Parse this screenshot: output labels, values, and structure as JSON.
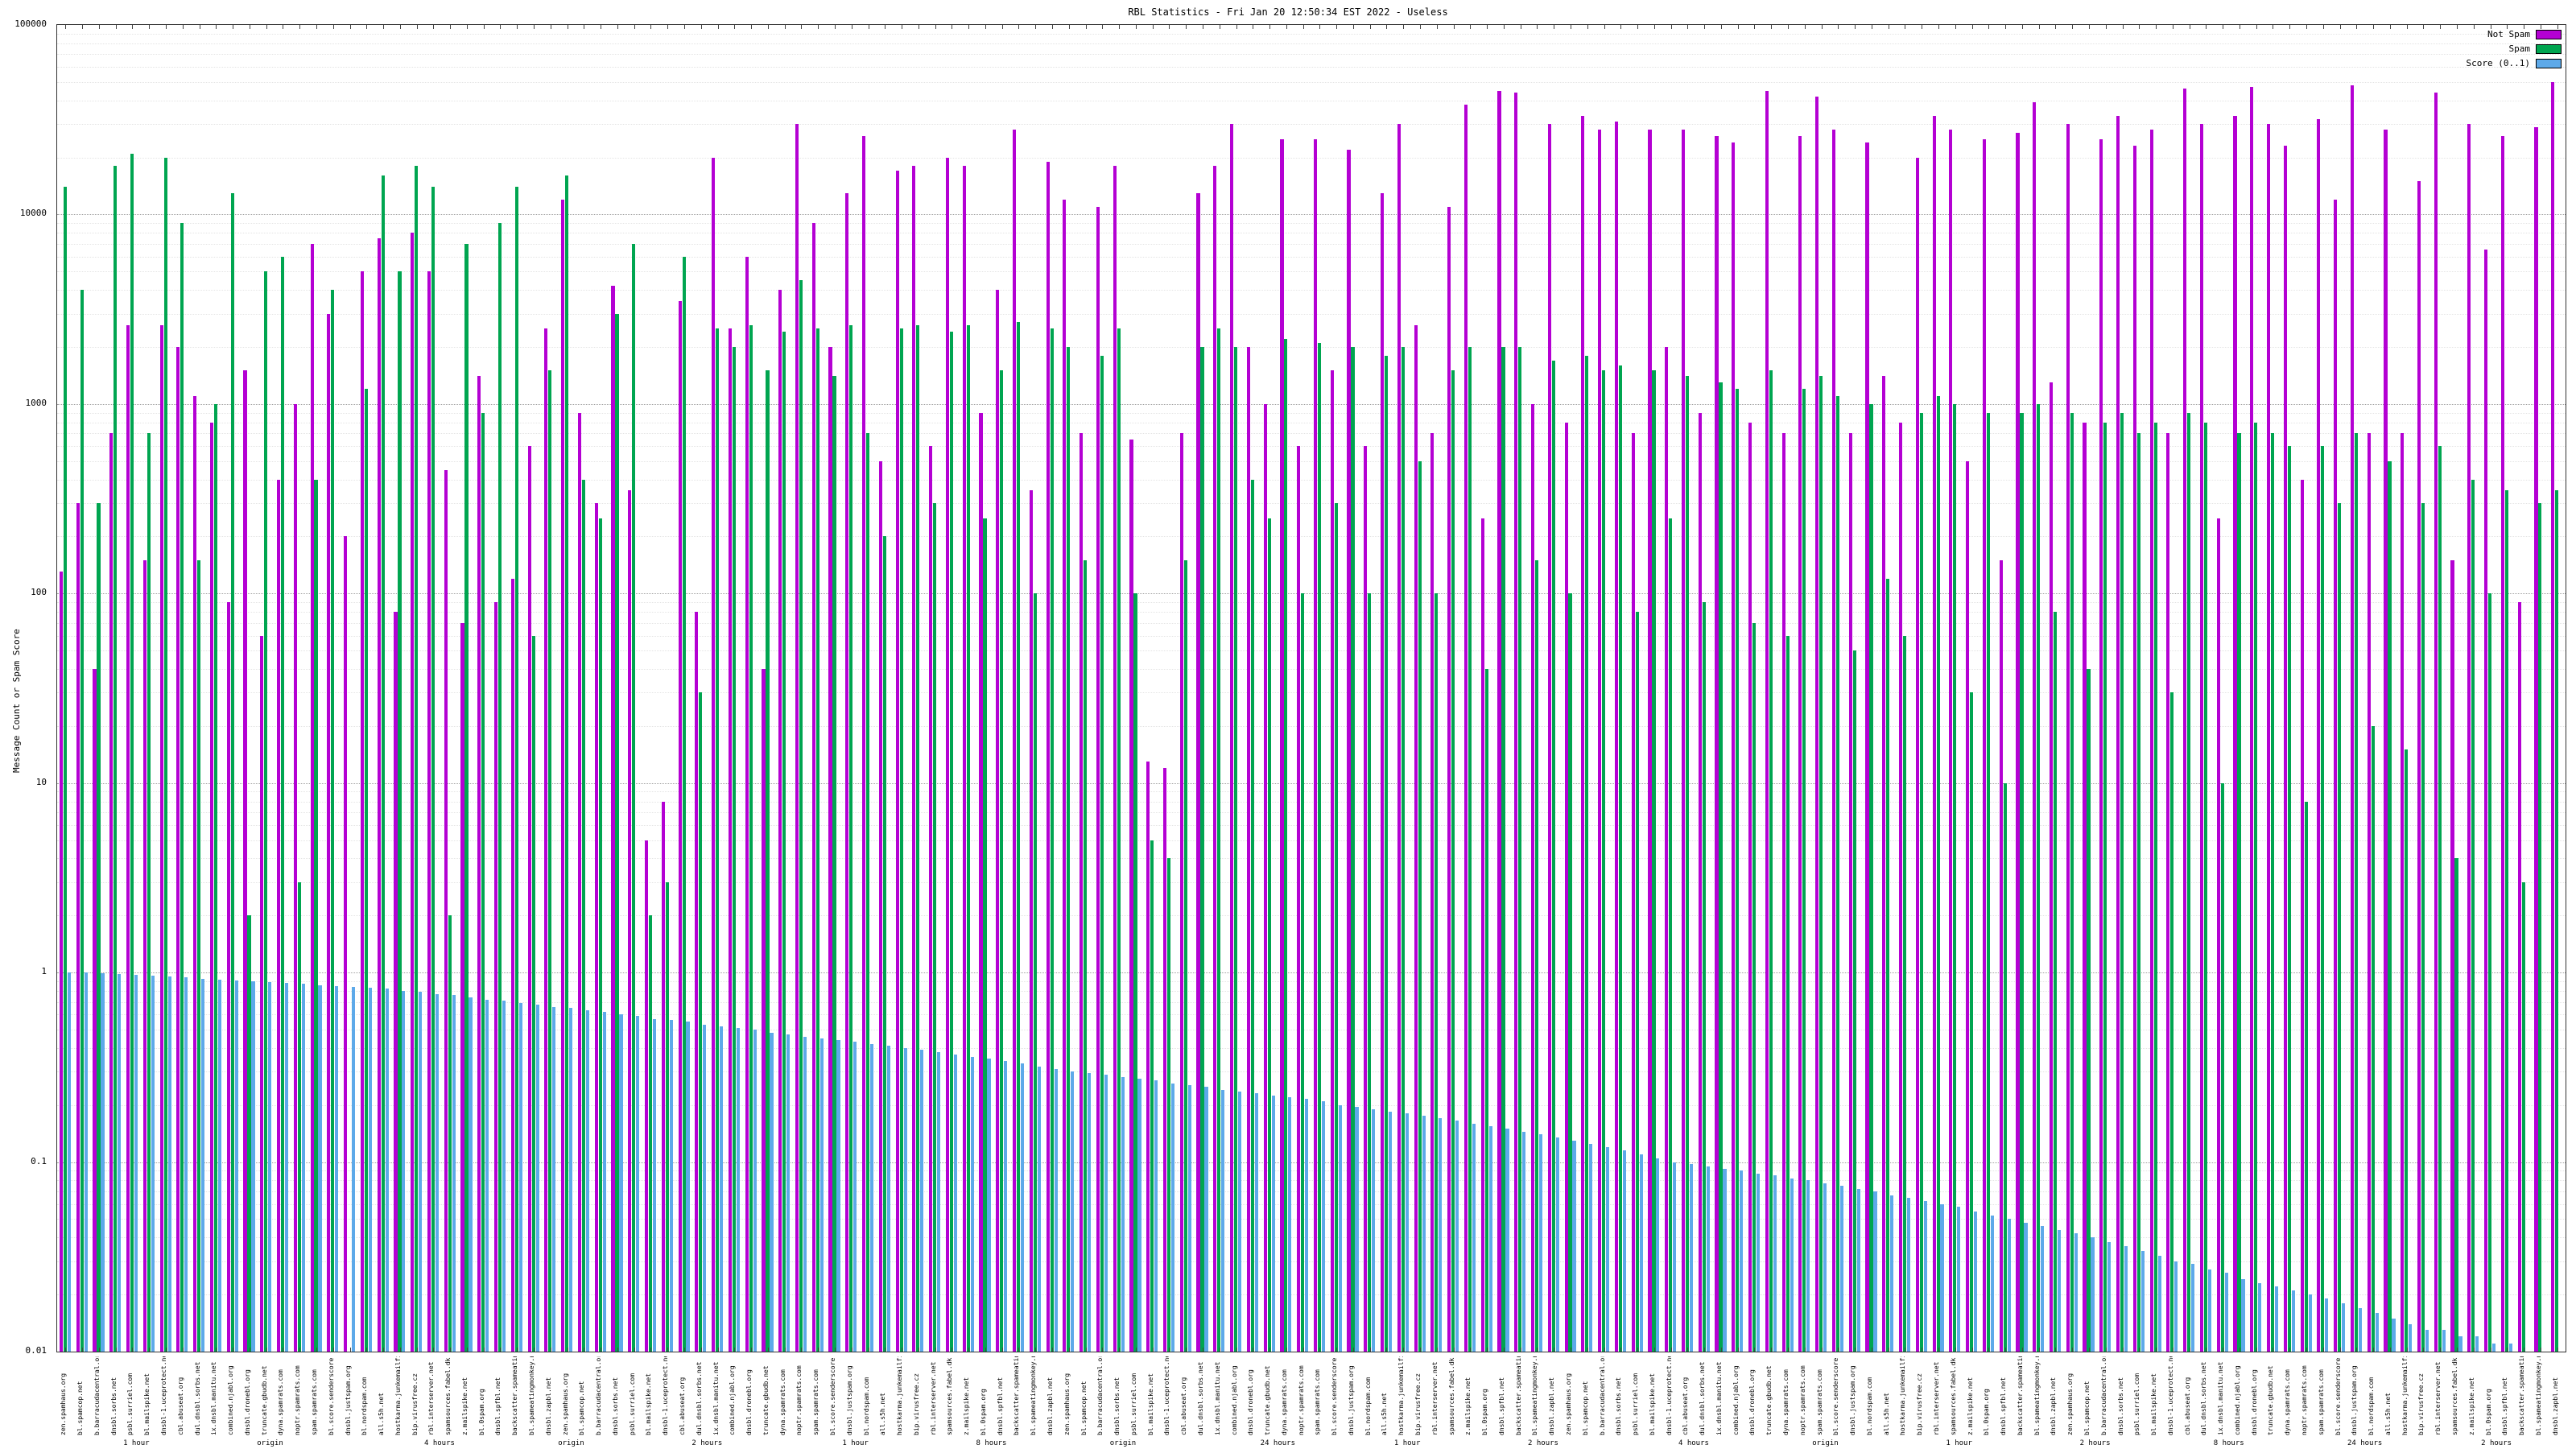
{
  "chart_data": {
    "type": "bar",
    "title": "RBL Statistics - Fri Jan 20 12:50:34 EST 2022 - Useless",
    "ylabel": "Message Count or Spam Score",
    "xlabel": "",
    "scale": "log",
    "ylim": [
      0.01,
      100000
    ],
    "yticks": [
      "100000",
      "10000",
      "1000",
      "100",
      "10",
      "1",
      "0.1",
      "0.01"
    ],
    "grid": true,
    "legend_position": "top-right",
    "background": "#ffffff",
    "categories": [
      "zen.spamhaus.org",
      "bl.spamcop.net",
      "b.barracudacentral.org",
      "dnsbl.sorbs.net",
      "psbl.surriel.com",
      "bl.mailspike.net",
      "dnsbl-1.uceprotect.net",
      "cbl.abuseat.org",
      "dul.dnsbl.sorbs.net",
      "ix.dnsbl.manitu.net",
      "combined.njabl.org",
      "dnsbl.dronebl.org",
      "truncate.gbudb.net",
      "dyna.spamrats.com",
      "noptr.spamrats.com",
      "spam.spamrats.com",
      "bl.score.senderscore.com",
      "dnsbl.justspam.org",
      "bl.nordspam.com",
      "all.s5h.net",
      "hostkarma.junkemailfilter.com",
      "bip.virusfree.cz",
      "rbl.interserver.net",
      "spamsources.fabel.dk",
      "z.mailspike.net",
      "bl.0spam.org",
      "dnsbl.spfbl.net",
      "backscatter.spameatingmonkey.net",
      "bl.spameatingmonkey.net",
      "dnsbl.zapbl.net",
      "zen.spamhaus.org",
      "bl.spamcop.net",
      "b.barracudacentral.org",
      "dnsbl.sorbs.net",
      "psbl.surriel.com",
      "bl.mailspike.net",
      "dnsbl-1.uceprotect.net",
      "cbl.abuseat.org",
      "dul.dnsbl.sorbs.net",
      "ix.dnsbl.manitu.net",
      "combined.njabl.org",
      "dnsbl.dronebl.org",
      "truncate.gbudb.net",
      "dyna.spamrats.com",
      "noptr.spamrats.com",
      "spam.spamrats.com",
      "bl.score.senderscore.com",
      "dnsbl.justspam.org",
      "bl.nordspam.com",
      "all.s5h.net",
      "hostkarma.junkemailfilter.com",
      "bip.virusfree.cz",
      "rbl.interserver.net",
      "spamsources.fabel.dk",
      "z.mailspike.net",
      "bl.0spam.org",
      "dnsbl.spfbl.net",
      "backscatter.spameatingmonkey.net",
      "bl.spameatingmonkey.net",
      "dnsbl.zapbl.net",
      "zen.spamhaus.org",
      "bl.spamcop.net",
      "b.barracudacentral.org",
      "dnsbl.sorbs.net",
      "psbl.surriel.com",
      "bl.mailspike.net",
      "dnsbl-1.uceprotect.net",
      "cbl.abuseat.org",
      "dul.dnsbl.sorbs.net",
      "ix.dnsbl.manitu.net",
      "combined.njabl.org",
      "dnsbl.dronebl.org",
      "truncate.gbudb.net",
      "dyna.spamrats.com",
      "noptr.spamrats.com",
      "spam.spamrats.com",
      "bl.score.senderscore.com",
      "dnsbl.justspam.org",
      "bl.nordspam.com",
      "all.s5h.net",
      "hostkarma.junkemailfilter.com",
      "bip.virusfree.cz",
      "rbl.interserver.net",
      "spamsources.fabel.dk",
      "z.mailspike.net",
      "bl.0spam.org",
      "dnsbl.spfbl.net",
      "backscatter.spameatingmonkey.net",
      "bl.spameatingmonkey.net",
      "dnsbl.zapbl.net",
      "zen.spamhaus.org",
      "bl.spamcop.net",
      "b.barracudacentral.org",
      "dnsbl.sorbs.net",
      "psbl.surriel.com",
      "bl.mailspike.net",
      "dnsbl-1.uceprotect.net",
      "cbl.abuseat.org",
      "dul.dnsbl.sorbs.net",
      "ix.dnsbl.manitu.net",
      "combined.njabl.org",
      "dnsbl.dronebl.org",
      "truncate.gbudb.net",
      "dyna.spamrats.com",
      "noptr.spamrats.com",
      "spam.spamrats.com",
      "bl.score.senderscore.com",
      "dnsbl.justspam.org",
      "bl.nordspam.com",
      "all.s5h.net",
      "hostkarma.junkemailfilter.com",
      "bip.virusfree.cz",
      "rbl.interserver.net",
      "spamsources.fabel.dk",
      "z.mailspike.net",
      "bl.0spam.org",
      "dnsbl.spfbl.net",
      "backscatter.spameatingmonkey.net",
      "bl.spameatingmonkey.net",
      "dnsbl.zapbl.net",
      "zen.spamhaus.org",
      "bl.spamcop.net",
      "b.barracudacentral.org",
      "dnsbl.sorbs.net",
      "psbl.surriel.com",
      "bl.mailspike.net",
      "dnsbl-1.uceprotect.net",
      "cbl.abuseat.org",
      "dul.dnsbl.sorbs.net",
      "ix.dnsbl.manitu.net",
      "combined.njabl.org",
      "dnsbl.dronebl.org",
      "truncate.gbudb.net",
      "dyna.spamrats.com",
      "noptr.spamrats.com",
      "spam.spamrats.com",
      "bl.score.senderscore.com",
      "dnsbl.justspam.org",
      "bl.nordspam.com",
      "all.s5h.net",
      "hostkarma.junkemailfilter.com",
      "bip.virusfree.cz",
      "rbl.interserver.net",
      "spamsources.fabel.dk",
      "z.mailspike.net",
      "bl.0spam.org",
      "dnsbl.spfbl.net",
      "backscatter.spameatingmonkey.net",
      "bl.spameatingmonkey.net",
      "dnsbl.zapbl.net"
    ],
    "series": [
      {
        "name": "Not Spam",
        "color": "#b400d3",
        "values": [
          130,
          300,
          40,
          700,
          2600,
          150,
          2600,
          2000,
          1100,
          800,
          90,
          1500,
          60,
          400,
          1000,
          7000,
          3000,
          200,
          5000,
          7500,
          80,
          8000,
          5000,
          450,
          70,
          1400,
          90,
          120,
          600,
          2500,
          12000,
          900,
          300,
          4200,
          350,
          5,
          8,
          3500,
          80,
          20000,
          2500,
          6000,
          40,
          4000,
          30000,
          9000,
          2000,
          13000,
          26000,
          500,
          17000,
          18000,
          600,
          20000,
          18000,
          900,
          4000,
          28000,
          350,
          19000,
          12000,
          700,
          11000,
          18000,
          650,
          13,
          12,
          700,
          13000,
          18000,
          30000,
          2000,
          1000,
          25000,
          600,
          25000,
          1500,
          22000,
          600,
          13000,
          30000,
          2600,
          700,
          11000,
          38000,
          250,
          45000,
          44000,
          1000,
          30000,
          800,
          33000,
          28000,
          31000,
          700,
          28000,
          2000,
          28000,
          900,
          26000,
          24000,
          800,
          45000,
          700,
          26000,
          42000,
          28000,
          700,
          24000,
          1400,
          800,
          20000,
          33000,
          28000,
          500,
          25000,
          150,
          27000,
          39000,
          1300,
          30000,
          800,
          25000,
          33000,
          23000,
          28000,
          700,
          46000,
          30000,
          250,
          33000,
          47000,
          30000,
          23000,
          400,
          32000,
          12000,
          48000,
          700,
          28000,
          700,
          15000,
          44000,
          150,
          30000,
          6500,
          26000,
          90,
          29000,
          50000
        ]
      },
      {
        "name": "Spam",
        "color": "#00a550",
        "values": [
          14000,
          4000,
          300,
          18000,
          21000,
          700,
          20000,
          9000,
          150,
          1000,
          13000,
          2,
          5000,
          6000,
          3,
          400,
          4000,
          0,
          1200,
          16000,
          5000,
          18000,
          14000,
          2,
          7000,
          900,
          9000,
          14000,
          60,
          1500,
          16000,
          400,
          250,
          3000,
          7000,
          2,
          3,
          6000,
          30,
          2500,
          2000,
          2600,
          1500,
          2400,
          4500,
          2500,
          1400,
          2600,
          700,
          200,
          2500,
          2600,
          300,
          2400,
          2600,
          250,
          1500,
          2700,
          100,
          2500,
          2000,
          150,
          1800,
          2500,
          100,
          5,
          4,
          150,
          2000,
          2500,
          2000,
          400,
          250,
          2200,
          100,
          2100,
          300,
          2000,
          100,
          1800,
          2000,
          500,
          100,
          1500,
          2000,
          40,
          2000,
          2000,
          150,
          1700,
          100,
          1800,
          1500,
          1600,
          80,
          1500,
          250,
          1400,
          90,
          1300,
          1200,
          70,
          1500,
          60,
          1200,
          1400,
          1100,
          50,
          1000,
          120,
          60,
          900,
          1100,
          1000,
          30,
          900,
          10,
          900,
          1000,
          80,
          900,
          40,
          800,
          900,
          700,
          800,
          30,
          900,
          800,
          10,
          700,
          800,
          700,
          600,
          8,
          600,
          300,
          700,
          20,
          500,
          15,
          300,
          600,
          4,
          400,
          100,
          350,
          3,
          300,
          350
        ]
      },
      {
        "name": "Score (0..1)",
        "color": "#5da9e9",
        "values": [
          1,
          1,
          0.99,
          0.98,
          0.97,
          0.96,
          0.95,
          0.94,
          0.93,
          0.92,
          0.91,
          0.9,
          0.89,
          0.88,
          0.87,
          0.86,
          0.85,
          0.84,
          0.83,
          0.82,
          0.8,
          0.79,
          0.77,
          0.76,
          0.74,
          0.72,
          0.71,
          0.69,
          0.68,
          0.66,
          0.65,
          0.63,
          0.62,
          0.6,
          0.59,
          0.57,
          0.56,
          0.55,
          0.53,
          0.52,
          0.51,
          0.5,
          0.48,
          0.47,
          0.46,
          0.45,
          0.44,
          0.43,
          0.42,
          0.41,
          0.4,
          0.39,
          0.38,
          0.37,
          0.36,
          0.35,
          0.34,
          0.33,
          0.32,
          0.31,
          0.3,
          0.295,
          0.29,
          0.28,
          0.275,
          0.27,
          0.26,
          0.255,
          0.25,
          0.24,
          0.235,
          0.23,
          0.225,
          0.22,
          0.215,
          0.21,
          0.2,
          0.195,
          0.19,
          0.185,
          0.18,
          0.175,
          0.17,
          0.165,
          0.16,
          0.155,
          0.15,
          0.145,
          0.14,
          0.135,
          0.13,
          0.125,
          0.12,
          0.115,
          0.11,
          0.105,
          0.1,
          0.098,
          0.095,
          0.092,
          0.09,
          0.087,
          0.085,
          0.082,
          0.08,
          0.077,
          0.075,
          0.072,
          0.07,
          0.067,
          0.065,
          0.062,
          0.06,
          0.058,
          0.055,
          0.052,
          0.05,
          0.048,
          0.046,
          0.044,
          0.042,
          0.04,
          0.038,
          0.036,
          0.034,
          0.032,
          0.03,
          0.029,
          0.027,
          0.026,
          0.024,
          0.023,
          0.022,
          0.021,
          0.02,
          0.019,
          0.018,
          0.017,
          0.016,
          0.015,
          0.014,
          0.013,
          0.013,
          0.012,
          0.012,
          0.011,
          0.011,
          0.01,
          0.01,
          0.01
        ]
      }
    ],
    "axis2_labels": [
      {
        "i": 4,
        "t": "1 hour"
      },
      {
        "i": 12,
        "t": "origin"
      },
      {
        "i": 22,
        "t": "4 hours"
      },
      {
        "i": 30,
        "t": "origin"
      },
      {
        "i": 38,
        "t": "2 hours"
      },
      {
        "i": 47,
        "t": "1 hour"
      },
      {
        "i": 55,
        "t": "8 hours"
      },
      {
        "i": 63,
        "t": "origin"
      },
      {
        "i": 72,
        "t": "24 hours"
      },
      {
        "i": 80,
        "t": "1 hour"
      },
      {
        "i": 88,
        "t": "2 hours"
      },
      {
        "i": 97,
        "t": "4 hours"
      },
      {
        "i": 105,
        "t": "origin"
      },
      {
        "i": 113,
        "t": "1 hour"
      },
      {
        "i": 121,
        "t": "2 hours"
      },
      {
        "i": 129,
        "t": "8 hours"
      },
      {
        "i": 137,
        "t": "24 hours"
      },
      {
        "i": 145,
        "t": "2 hours"
      }
    ]
  }
}
